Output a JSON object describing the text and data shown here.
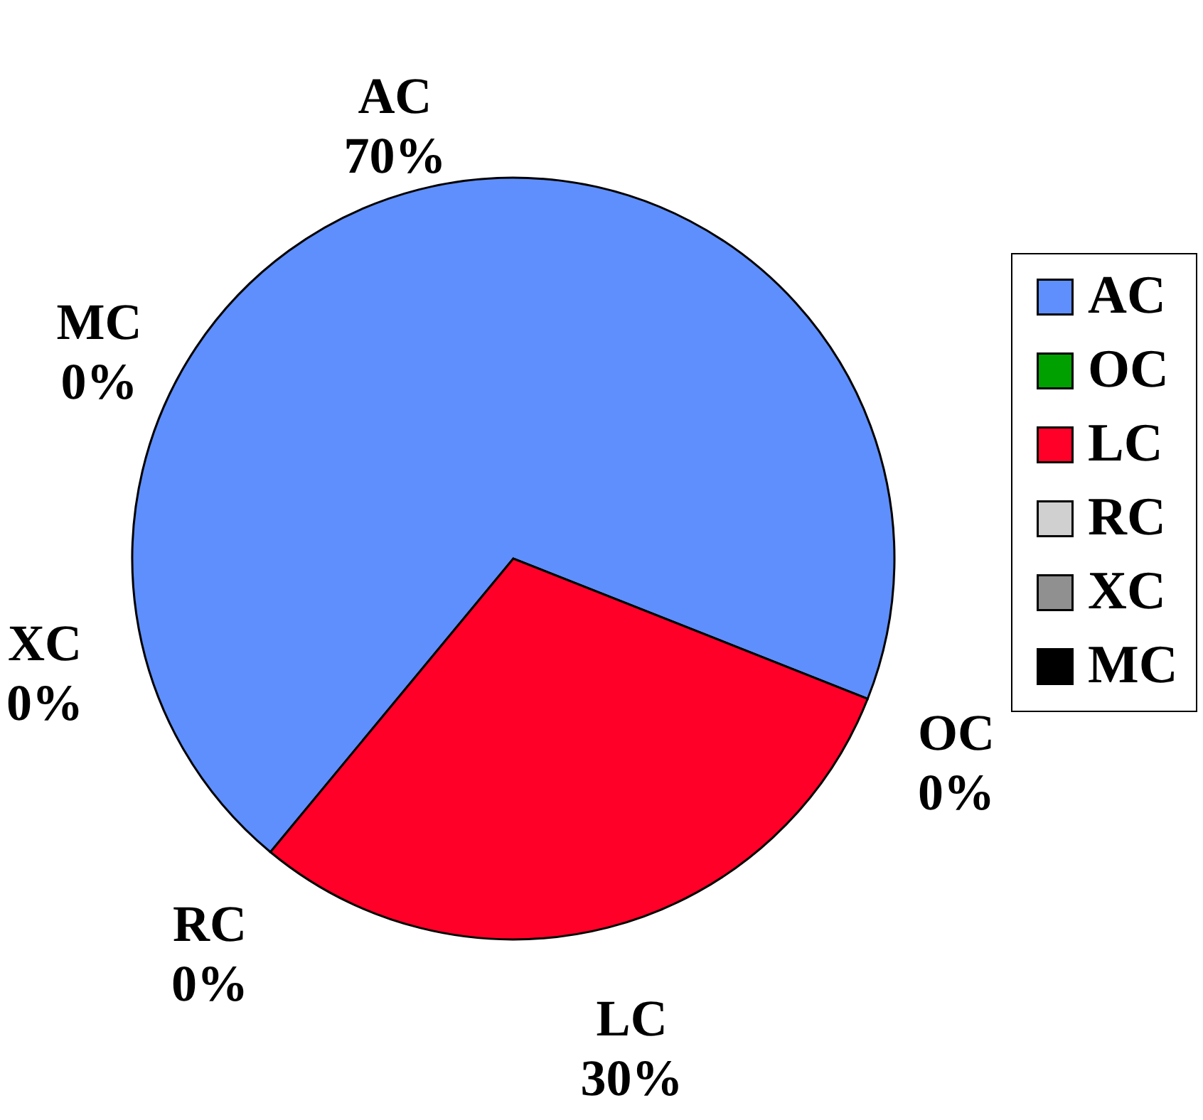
{
  "chart_data": {
    "type": "pie",
    "categories": [
      "AC",
      "OC",
      "LC",
      "RC",
      "XC",
      "MC"
    ],
    "values": [
      70,
      0,
      30,
      0,
      0,
      0
    ],
    "value_labels": [
      "70%",
      "0%",
      "30%",
      "0%",
      "0%",
      "0%"
    ],
    "colors": [
      "#5f8ffc",
      "#00a000",
      "#ff0028",
      "#d0d0d0",
      "#909090",
      "#000000"
    ],
    "legend": "right"
  }
}
